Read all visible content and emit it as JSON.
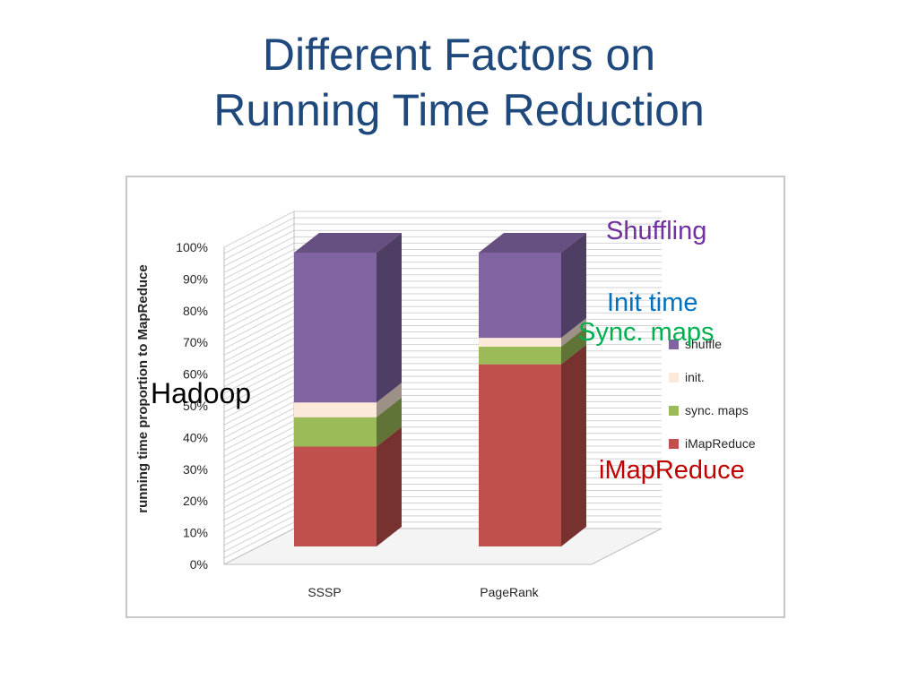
{
  "slide": {
    "title_line1": "Different Factors on",
    "title_line2": "Running Time Reduction"
  },
  "annotations": {
    "shuffling": "Shuffling",
    "init_time": "Init time",
    "sync_maps": "Sync. maps",
    "hadoop": "Hadoop",
    "imapreduce": "iMapReduce"
  },
  "colors": {
    "imapreduce": "#c0504d",
    "sync_maps": "#9bbb59",
    "init": "#fde9d9",
    "shuffle": "#8064a2",
    "title": "#1f497d",
    "shuffling_label": "#7030a0",
    "init_label": "#0070c0",
    "sync_label": "#00b050",
    "imapreduce_label": "#c00000"
  },
  "chart_data": {
    "type": "bar",
    "stacked": true,
    "three_d": true,
    "categories": [
      "SSSP",
      "PageRank"
    ],
    "series": [
      {
        "name": "iMapReduce",
        "values": [
          34,
          62
        ]
      },
      {
        "name": "sync. maps",
        "values": [
          10,
          6
        ]
      },
      {
        "name": "init.",
        "values": [
          5,
          3
        ]
      },
      {
        "name": "shuffle",
        "values": [
          51,
          29
        ]
      }
    ],
    "ylabel": "running time proportion to MapReduce",
    "ylim": [
      0,
      100
    ],
    "yticks": [
      "0%",
      "10%",
      "20%",
      "30%",
      "40%",
      "50%",
      "60%",
      "70%",
      "80%",
      "90%",
      "100%"
    ],
    "legend_items": [
      "shuffle",
      "init.",
      "sync. maps",
      "iMapReduce"
    ],
    "legend_position": "right",
    "grid": true
  }
}
